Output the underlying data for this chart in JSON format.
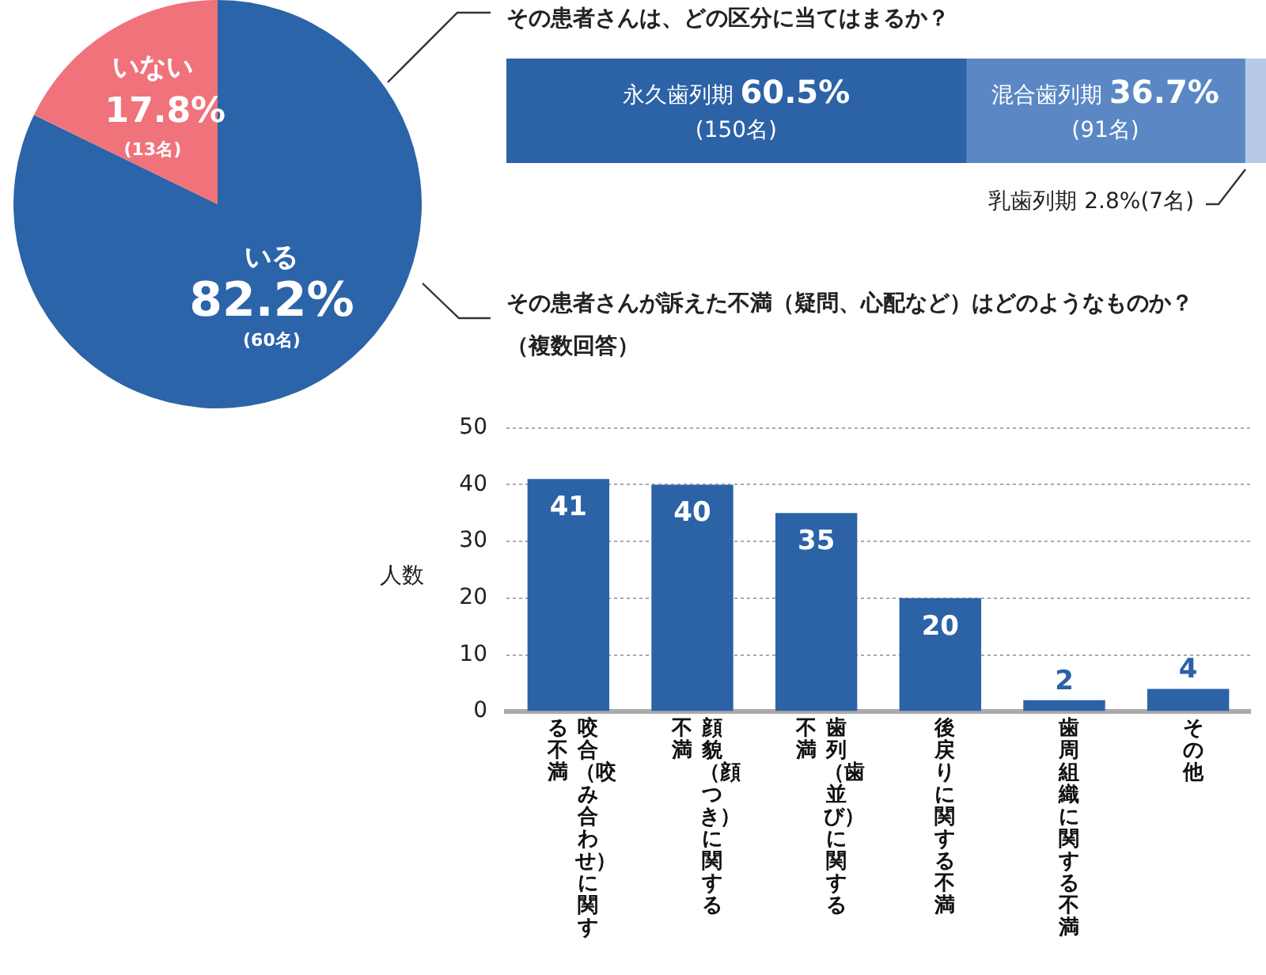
{
  "chart_data": [
    {
      "type": "pie",
      "categories": [
        "いる",
        "いない"
      ],
      "values": [
        82.2,
        17.8
      ],
      "colors": [
        "#2b64a8",
        "#f0727b"
      ],
      "value_labels": [
        "82.2%\n(60名)",
        "17.8%\n(13名)"
      ]
    },
    {
      "type": "bar",
      "orientation": "horizontal",
      "stacked": true,
      "title": "その患者さんは、どの区分に当てはまるか？",
      "categories": [
        null
      ],
      "xlim": [
        0,
        100
      ],
      "tick_labels": false,
      "series": [
        {
          "name": "永久歯列期",
          "color": "#2c62a6",
          "values": [
            60.5
          ],
          "value_labels": [
            "60.5%\n(150名)"
          ]
        },
        {
          "name": "混合歯列期",
          "color": "#5b88c4",
          "values": [
            36.7
          ],
          "value_labels": [
            "36.7%\n(91名)"
          ]
        },
        {
          "name": "乳歯列期",
          "color": "#b6cae5",
          "values": [
            2.8
          ],
          "value_labels": [
            "2.8%(7名)"
          ]
        }
      ]
    },
    {
      "type": "bar",
      "title": "その患者さんが訴えた不満（疑問、心配など）はどのようなものか？",
      "subtitle": "（複数回答）",
      "ylabel": "人数",
      "categories": [
        "咬合（咬み合わせ）に関する不満",
        "顔貌（顔つき）に関する不満",
        "歯列（歯並び）に関する不満",
        "後戻りに関する不満",
        "歯周組織に関する不満",
        "その他"
      ],
      "values": [
        41,
        40,
        35,
        20,
        2,
        4
      ],
      "color": "#2c62a6",
      "ylim": [
        0,
        50
      ],
      "yticks": [
        0,
        10,
        20,
        30,
        40,
        50
      ],
      "grid": "y",
      "data_labels": true
    }
  ]
}
